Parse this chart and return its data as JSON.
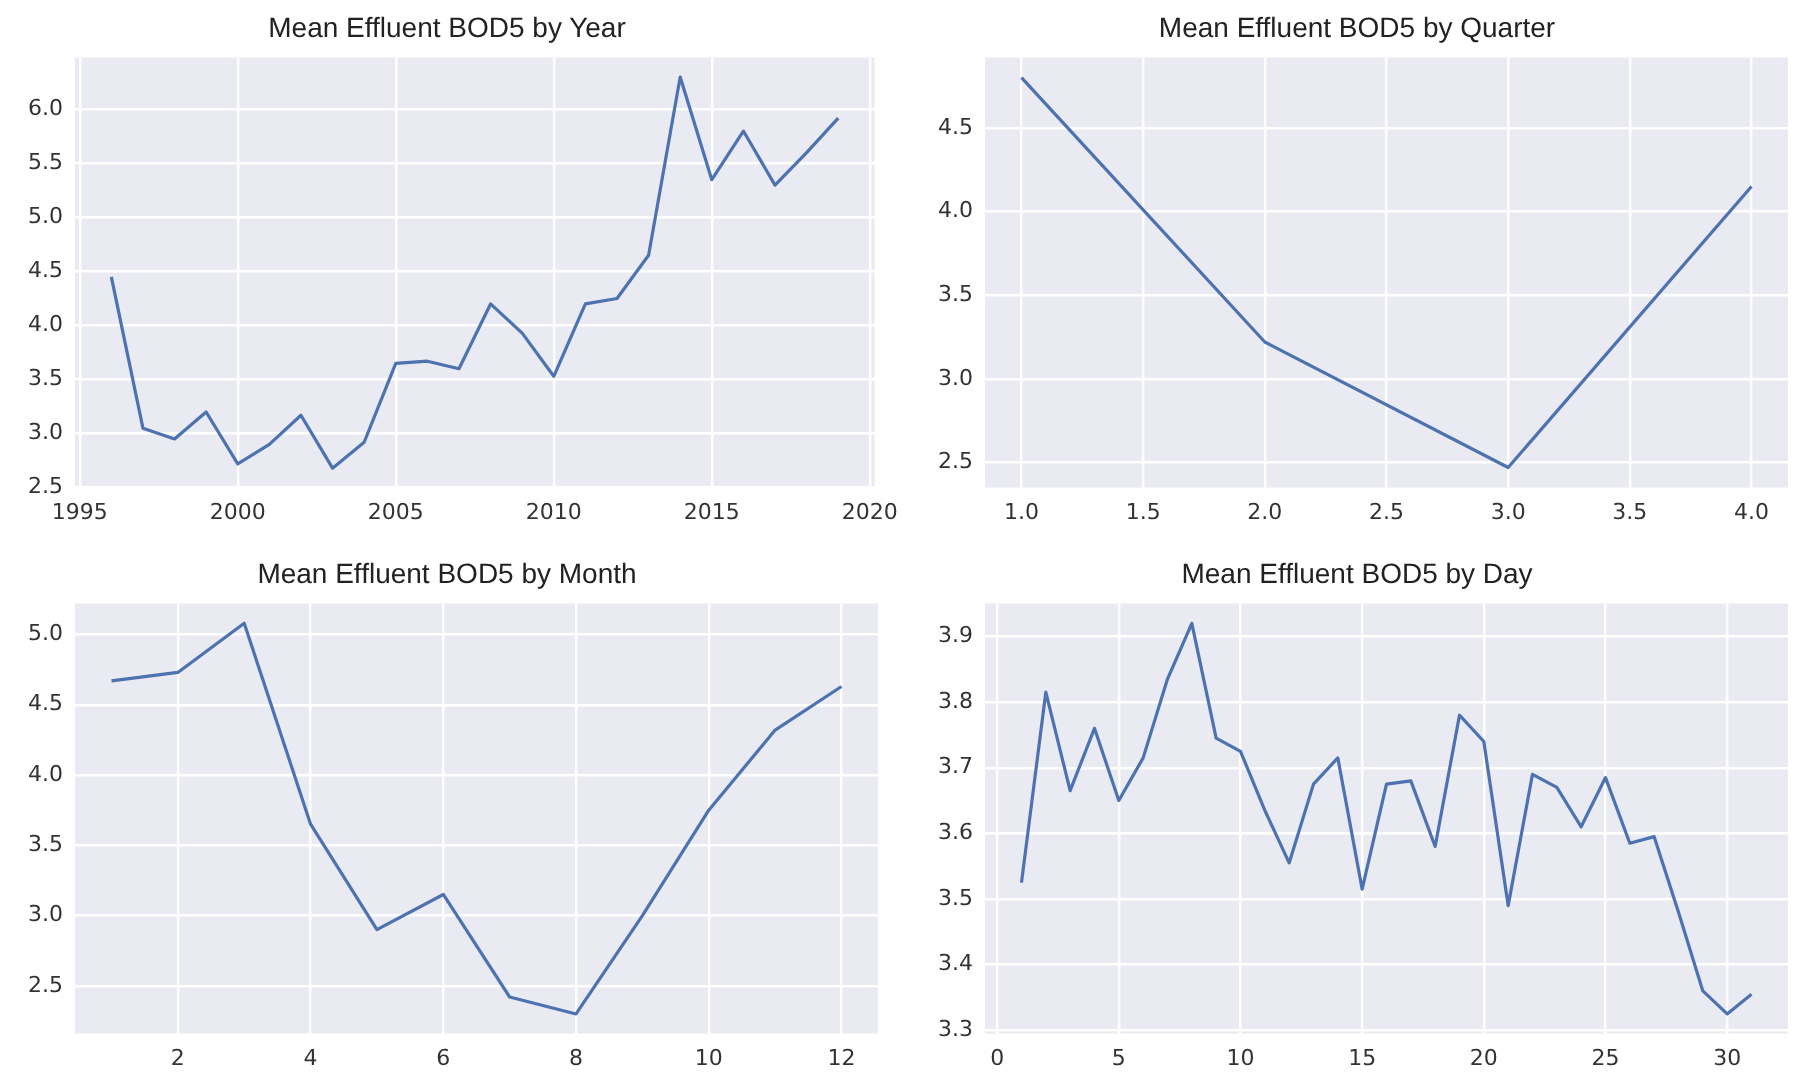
{
  "chart_data": [
    {
      "type": "line",
      "title": "Mean Effluent BOD5 by Year",
      "grid": true,
      "xlim": [
        1994.85,
        2020.15
      ],
      "xticks": [
        1995,
        2000,
        2005,
        2010,
        2015,
        2020
      ],
      "ylim": [
        2.5,
        6.48
      ],
      "yticks": [
        2.5,
        {
          "value": 3,
          "label": "3.0"
        },
        3.5,
        {
          "value": 4,
          "label": "4.0"
        },
        4.5,
        {
          "value": 5,
          "label": "5.0"
        },
        5.5,
        {
          "value": 6,
          "label": "6.0"
        }
      ],
      "x": [
        1996,
        1997,
        1998,
        1999,
        2000,
        2001,
        2002,
        2003,
        2004,
        2005,
        2006,
        2007,
        2008,
        2009,
        2010,
        2011,
        2012,
        2013,
        2014,
        2015,
        2016,
        2017,
        2018,
        2019
      ],
      "series": [
        {
          "color": "#4c72b0",
          "values": [
            4.45,
            3.05,
            2.95,
            3.2,
            2.72,
            2.9,
            3.17,
            2.68,
            2.92,
            3.65,
            3.67,
            3.6,
            4.2,
            3.93,
            3.53,
            4.2,
            4.25,
            4.65,
            6.3,
            5.35,
            5.8,
            5.3,
            5.6,
            5.92
          ]
        }
      ]
    },
    {
      "type": "line",
      "title": "Mean Effluent BOD5 by Quarter",
      "grid": true,
      "xlim": [
        0.85,
        4.15
      ],
      "xticks": [
        {
          "value": 1,
          "label": "1.0"
        },
        1.5,
        {
          "value": 2,
          "label": "2.0"
        },
        2.5,
        {
          "value": 3,
          "label": "3.0"
        },
        3.5,
        {
          "value": 4,
          "label": "4.0"
        }
      ],
      "ylim": [
        2.35,
        4.92
      ],
      "yticks": [
        2.5,
        {
          "value": 3,
          "label": "3.0"
        },
        3.5,
        {
          "value": 4,
          "label": "4.0"
        },
        4.5
      ],
      "x": [
        1,
        2,
        3,
        4
      ],
      "series": [
        {
          "color": "#4c72b0",
          "values": [
            4.8,
            3.22,
            2.47,
            4.15
          ]
        }
      ]
    },
    {
      "type": "line",
      "title": "Mean Effluent BOD5 by Month",
      "grid": true,
      "xlim": [
        0.45,
        12.55
      ],
      "xticks": [
        2,
        4,
        6,
        8,
        10,
        12
      ],
      "ylim": [
        2.16,
        5.22
      ],
      "yticks": [
        2.5,
        {
          "value": 3,
          "label": "3.0"
        },
        3.5,
        {
          "value": 4,
          "label": "4.0"
        },
        4.5,
        {
          "value": 5,
          "label": "5.0"
        }
      ],
      "x": [
        1,
        2,
        3,
        4,
        5,
        6,
        7,
        8,
        9,
        10,
        11,
        12
      ],
      "series": [
        {
          "color": "#4c72b0",
          "values": [
            4.67,
            4.73,
            5.08,
            3.65,
            2.9,
            3.15,
            2.42,
            2.3,
            3.0,
            3.75,
            4.32,
            4.63
          ]
        }
      ]
    },
    {
      "type": "line",
      "title": "Mean Effluent BOD5 by Day",
      "grid": true,
      "xlim": [
        -0.5,
        32.5
      ],
      "xticks": [
        0,
        5,
        10,
        15,
        20,
        25,
        30
      ],
      "ylim": [
        3.295,
        3.95
      ],
      "yticks": [
        3.3,
        3.4,
        3.5,
        3.6,
        3.7,
        3.8,
        3.9
      ],
      "x": [
        1,
        2,
        3,
        4,
        5,
        6,
        7,
        8,
        9,
        10,
        11,
        12,
        13,
        14,
        15,
        16,
        17,
        18,
        19,
        20,
        21,
        22,
        23,
        24,
        25,
        26,
        27,
        28,
        29,
        30,
        31
      ],
      "series": [
        {
          "color": "#4c72b0",
          "values": [
            3.525,
            3.815,
            3.665,
            3.76,
            3.65,
            3.715,
            3.835,
            3.92,
            3.745,
            3.725,
            3.635,
            3.555,
            3.675,
            3.715,
            3.515,
            3.675,
            3.68,
            3.58,
            3.78,
            3.74,
            3.49,
            3.69,
            3.67,
            3.61,
            3.685,
            3.585,
            3.595,
            3.48,
            3.36,
            3.325,
            3.355
          ]
        }
      ]
    }
  ]
}
